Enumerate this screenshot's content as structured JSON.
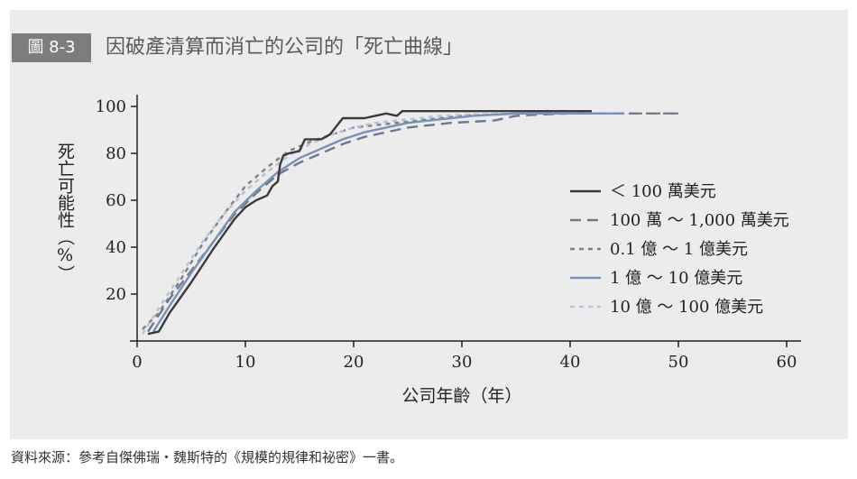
{
  "figure": {
    "badge": "圖 8-3",
    "title": "因破產清算而消亡的公司的「死亡曲線」"
  },
  "source_note": "資料來源：參考自傑佛瑞・魏斯特的《規模的規律和祕密》一書。",
  "chart_data": {
    "type": "line",
    "xlabel": "公司年齡（年）",
    "ylabel": "死亡可能性（%）",
    "xlim": [
      0,
      60
    ],
    "ylim": [
      0,
      100
    ],
    "xticks": [
      0,
      10,
      20,
      30,
      40,
      50,
      60
    ],
    "yticks": [
      20,
      40,
      60,
      80,
      100
    ],
    "grid": false,
    "legend_position": "right",
    "series": [
      {
        "name": "＜ 100 萬美元",
        "color": "#3a3a3a",
        "dash": "solid",
        "points": [
          [
            1,
            3
          ],
          [
            2,
            4
          ],
          [
            3,
            12
          ],
          [
            5,
            25
          ],
          [
            7,
            39
          ],
          [
            9,
            52
          ],
          [
            10,
            57
          ],
          [
            11,
            60
          ],
          [
            12,
            62
          ],
          [
            12.5,
            66
          ],
          [
            13,
            68
          ],
          [
            13.2,
            75
          ],
          [
            13.5,
            79
          ],
          [
            14,
            80
          ],
          [
            15,
            81
          ],
          [
            15.5,
            86
          ],
          [
            17,
            86
          ],
          [
            17.8,
            88
          ],
          [
            19,
            95
          ],
          [
            21,
            95
          ],
          [
            23,
            97
          ],
          [
            24,
            96
          ],
          [
            24.5,
            98
          ],
          [
            26,
            98
          ],
          [
            30,
            98
          ],
          [
            42,
            98
          ]
        ]
      },
      {
        "name": "100 萬 ～ 1,000 萬美元",
        "color": "#6e7890",
        "dash": "long",
        "points": [
          [
            1,
            4
          ],
          [
            3,
            18
          ],
          [
            5,
            30
          ],
          [
            7,
            42
          ],
          [
            9,
            54
          ],
          [
            11,
            63
          ],
          [
            13,
            71
          ],
          [
            15,
            76
          ],
          [
            17,
            80
          ],
          [
            19,
            84
          ],
          [
            21,
            87
          ],
          [
            23,
            89
          ],
          [
            25,
            91
          ],
          [
            27,
            92
          ],
          [
            29,
            93
          ],
          [
            31,
            93.5
          ],
          [
            33,
            94
          ],
          [
            35,
            96
          ],
          [
            37,
            96.5
          ],
          [
            40,
            97
          ],
          [
            45,
            97
          ],
          [
            50,
            97
          ]
        ]
      },
      {
        "name": "0.1 億 ～ 1 億美元",
        "color": "#808080",
        "dash": "short",
        "points": [
          [
            0.5,
            5
          ],
          [
            2,
            12
          ],
          [
            4,
            26
          ],
          [
            6,
            41
          ],
          [
            8,
            54
          ],
          [
            10,
            66
          ],
          [
            12,
            74
          ],
          [
            14,
            81
          ],
          [
            16,
            85
          ],
          [
            18,
            88
          ],
          [
            20,
            91
          ],
          [
            22,
            92
          ],
          [
            24,
            93
          ],
          [
            26,
            94
          ],
          [
            28,
            95
          ],
          [
            30,
            96
          ],
          [
            35,
            97
          ],
          [
            40,
            97
          ],
          [
            45,
            97
          ],
          [
            50,
            97
          ]
        ]
      },
      {
        "name": "1 億 ～ 10 億美元",
        "color": "#7791b8",
        "dash": "solid",
        "points": [
          [
            1.5,
            4
          ],
          [
            3,
            15
          ],
          [
            5,
            29
          ],
          [
            7,
            42
          ],
          [
            9,
            55
          ],
          [
            11,
            64
          ],
          [
            13,
            72
          ],
          [
            15,
            78
          ],
          [
            17,
            82
          ],
          [
            19,
            86
          ],
          [
            21,
            89
          ],
          [
            23,
            91
          ],
          [
            25,
            93
          ],
          [
            27,
            94
          ],
          [
            29,
            95
          ],
          [
            31,
            96
          ],
          [
            35,
            97
          ],
          [
            40,
            97
          ],
          [
            45,
            97
          ]
        ]
      },
      {
        "name": "10 億 ～ 100 億美元",
        "color": "#b2c4de",
        "dash": "short",
        "points": [
          [
            0.5,
            3
          ],
          [
            2,
            14
          ],
          [
            4,
            28
          ],
          [
            6,
            42
          ],
          [
            8,
            54
          ],
          [
            10,
            64
          ],
          [
            12,
            72
          ],
          [
            14,
            79
          ],
          [
            16,
            84
          ],
          [
            18,
            88
          ],
          [
            20,
            91
          ],
          [
            22,
            93
          ],
          [
            24,
            94
          ],
          [
            26,
            95
          ],
          [
            28,
            96
          ],
          [
            30,
            96.5
          ],
          [
            35,
            97
          ],
          [
            40,
            97.5
          ]
        ]
      }
    ]
  }
}
